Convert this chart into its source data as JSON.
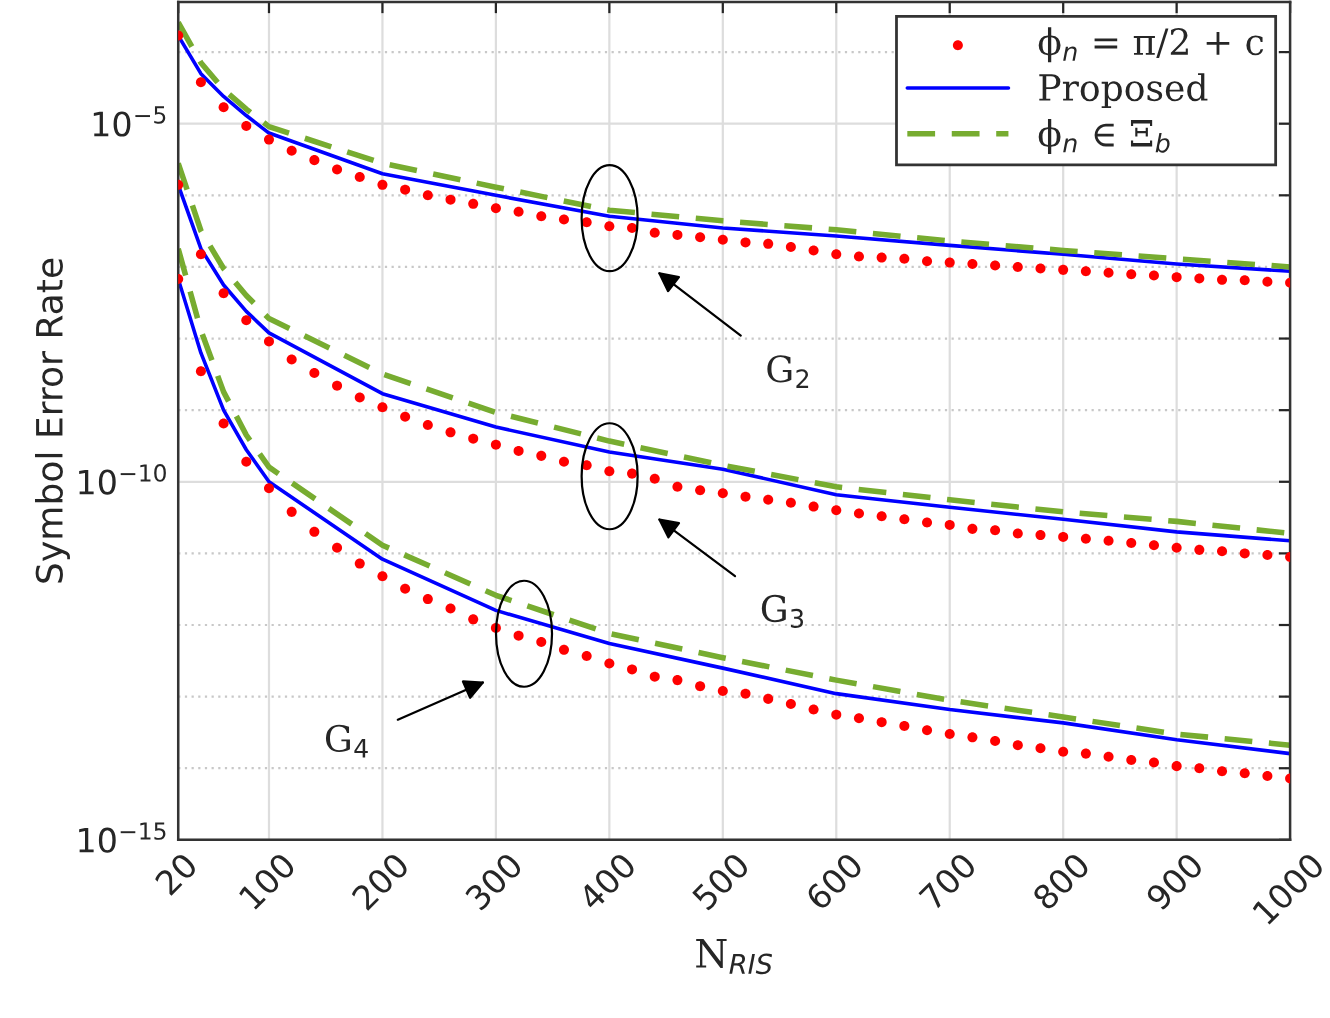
{
  "chart_data": {
    "type": "line",
    "xlabel": "N$_{RIS}$",
    "ylabel": "Symbol Error Rate",
    "xlim": [
      20,
      1000
    ],
    "ylim": [
      1e-15,
      0.0005
    ],
    "xticks": [
      20,
      100,
      200,
      300,
      400,
      500,
      600,
      700,
      800,
      900,
      1000
    ],
    "yticks": [
      {
        "value": 0.0001,
        "label": null
      },
      {
        "value": 1e-05,
        "label": "10$^{−5}$"
      },
      {
        "value": 1e-06,
        "label": null
      },
      {
        "value": 1e-07,
        "label": null
      },
      {
        "value": 1e-08,
        "label": null
      },
      {
        "value": 1e-09,
        "label": null
      },
      {
        "value": 1e-10,
        "label": "10$^{−10}$"
      },
      {
        "value": 1e-11,
        "label": null
      },
      {
        "value": 1e-12,
        "label": null
      },
      {
        "value": 1e-13,
        "label": null
      },
      {
        "value": 1e-14,
        "label": null
      },
      {
        "value": 1e-15,
        "label": "10$^{−15}$"
      }
    ],
    "log": "y",
    "grid": true,
    "legend": "top right",
    "annotations": [
      "G$_{2}$",
      "G$_{3}$",
      "G$_{4}$"
    ],
    "series": [
      {
        "name": "ϕ$_{n}$ = π/2 + c",
        "type": "scatter",
        "marker": "circle",
        "color": "#ff0000",
        "x": [
          20,
          40,
          60,
          80,
          100,
          120,
          140,
          160,
          180,
          200,
          220,
          240,
          260,
          280,
          300,
          320,
          340,
          360,
          380,
          400,
          420,
          440,
          460,
          480,
          500,
          520,
          540,
          560,
          580,
          600,
          620,
          640,
          660,
          680,
          700,
          720,
          740,
          760,
          780,
          800,
          820,
          840,
          860,
          880,
          900,
          920,
          940,
          960,
          980,
          1000
        ],
        "values": [
          0.00017,
          3.8e-05,
          1.7e-05,
          9.3e-06,
          6e-06,
          4.2e-06,
          3.1e-06,
          2.3e-06,
          1.8e-06,
          1.4e-06,
          1.2e-06,
          1e-06,
          8.7e-07,
          7.6e-07,
          6.6e-07,
          5.9e-07,
          5.1e-07,
          4.6e-07,
          4.2e-07,
          3.7e-07,
          3.5e-07,
          3e-07,
          2.8e-07,
          2.6e-07,
          2.4e-07,
          2.2e-07,
          2.1e-07,
          1.9e-07,
          1.7e-07,
          1.5e-07,
          1.4e-07,
          1.35e-07,
          1.3e-07,
          1.2e-07,
          1.15e-07,
          1.1e-07,
          1.05e-07,
          1e-07,
          9.5e-08,
          9.1e-08,
          8.7e-08,
          8.3e-08,
          7.9e-08,
          7.6e-08,
          7.2e-08,
          6.9e-08,
          6.6e-08,
          6.5e-08,
          6.2e-08,
          6e-08
        ]
      },
      {
        "name": "Proposed",
        "line_style": "solid",
        "color": "#0000ff",
        "x": [
          20,
          40,
          60,
          80,
          100,
          200,
          300,
          400,
          500,
          600,
          700,
          800,
          900,
          1000
        ],
        "values": [
          0.00017,
          5e-05,
          2.4e-05,
          1.3e-05,
          7.4e-06,
          2e-06,
          1e-06,
          5.1e-07,
          3.5e-07,
          2.7e-07,
          2e-07,
          1.5e-07,
          1.1e-07,
          8.7e-08
        ]
      },
      {
        "name": "ϕ$_{n}$ ∈ Ξ$_{b}$",
        "line_style": "dashed",
        "color": "#77ac30",
        "x": [
          20,
          40,
          60,
          80,
          100,
          200,
          300,
          400,
          500,
          600,
          700,
          800,
          900,
          1000
        ],
        "values": [
          0.00026,
          7.1e-05,
          3e-05,
          1.6e-05,
          9.1e-06,
          2.8e-06,
          1.3e-06,
          6.2e-07,
          4.4e-07,
          3.3e-07,
          2.3e-07,
          1.7e-07,
          1.3e-07,
          1e-07
        ]
      },
      {
        "type": "scatter",
        "marker": "circle",
        "color": "#ff0000",
        "x": [
          20,
          40,
          60,
          80,
          100,
          120,
          140,
          160,
          180,
          200,
          220,
          240,
          260,
          280,
          300,
          320,
          340,
          360,
          380,
          400,
          420,
          440,
          460,
          480,
          500,
          520,
          540,
          560,
          580,
          600,
          620,
          640,
          660,
          680,
          700,
          720,
          740,
          760,
          780,
          800,
          820,
          840,
          860,
          880,
          900,
          920,
          940,
          960,
          980,
          1000
        ],
        "values": [
          1.4e-06,
          1.5e-07,
          4.3e-08,
          1.8e-08,
          9.1e-09,
          5.1e-09,
          3.3e-09,
          2.2e-09,
          1.5e-09,
          1.1e-09,
          8.1e-10,
          6.2e-10,
          4.9e-10,
          4e-10,
          3.3e-10,
          2.7e-10,
          2.3e-10,
          1.9e-10,
          1.7e-10,
          1.4e-10,
          1.3e-10,
          1.1e-10,
          8.5e-11,
          7.6e-11,
          6.9e-11,
          6.2e-11,
          5.6e-11,
          5.1e-11,
          4.5e-11,
          4e-11,
          3.6e-11,
          3.3e-11,
          3e-11,
          2.7e-11,
          2.5e-11,
          2.2e-11,
          2.1e-11,
          1.9e-11,
          1.8e-11,
          1.7e-11,
          1.6e-11,
          1.5e-11,
          1.4e-11,
          1.3e-11,
          1.2e-11,
          1.12e-11,
          1.07e-11,
          1e-11,
          9.5e-12,
          8.9e-12
        ]
      },
      {
        "line_style": "solid",
        "color": "#0000ff",
        "x": [
          20,
          40,
          60,
          80,
          100,
          200,
          300,
          400,
          500,
          600,
          700,
          800,
          900,
          1000
        ],
        "values": [
          1.4e-06,
          1.8e-07,
          5.6e-08,
          2.4e-08,
          1.2e-08,
          1.7e-09,
          5.8e-10,
          2.6e-10,
          1.5e-10,
          6.6e-11,
          4.4e-11,
          3e-11,
          2e-11,
          1.5e-11
        ]
      },
      {
        "line_style": "dashed",
        "color": "#77ac30",
        "x": [
          20,
          40,
          60,
          80,
          100,
          200,
          300,
          400,
          500,
          600,
          700,
          800,
          900,
          1000
        ],
        "values": [
          2.8e-06,
          3.2e-07,
          9.5e-08,
          4e-08,
          1.9e-08,
          3.2e-09,
          9.3e-10,
          3.7e-10,
          1.7e-10,
          8.5e-11,
          5.6e-11,
          3.8e-11,
          2.8e-11,
          1.9e-11
        ]
      },
      {
        "type": "scatter",
        "marker": "circle",
        "color": "#ff0000",
        "x": [
          20,
          40,
          60,
          80,
          100,
          120,
          140,
          160,
          180,
          200,
          220,
          240,
          260,
          280,
          300,
          320,
          340,
          360,
          380,
          400,
          420,
          440,
          460,
          480,
          500,
          520,
          540,
          560,
          580,
          600,
          620,
          640,
          660,
          680,
          700,
          720,
          740,
          760,
          780,
          800,
          820,
          840,
          860,
          880,
          900,
          920,
          940,
          960,
          980,
          1000
        ],
        "values": [
          6.8e-08,
          3.5e-09,
          6.5e-10,
          1.9e-10,
          8.1e-11,
          3.8e-11,
          2e-11,
          1.2e-11,
          7.2e-12,
          4.8e-12,
          3.2e-12,
          2.3e-12,
          1.7e-12,
          1.2e-12,
          9.1e-13,
          7.1e-13,
          5.8e-13,
          4.5e-13,
          3.7e-13,
          2.9e-13,
          2.4e-13,
          1.9e-13,
          1.7e-13,
          1.4e-13,
          1.2e-13,
          1.1e-13,
          9.3e-14,
          7.9e-14,
          6.6e-14,
          5.6e-14,
          5e-14,
          4.4e-14,
          3.9e-14,
          3.4e-14,
          3e-14,
          2.7e-14,
          2.4e-14,
          2.1e-14,
          1.9e-14,
          1.7e-14,
          1.6e-14,
          1.45e-14,
          1.3e-14,
          1.2e-14,
          1.07e-14,
          1e-14,
          9.1e-15,
          8.5e-15,
          7.8e-15,
          7.2e-15
        ]
      },
      {
        "line_style": "solid",
        "color": "#0000ff",
        "x": [
          20,
          40,
          60,
          80,
          100,
          200,
          300,
          400,
          500,
          600,
          700,
          800,
          900,
          1000
        ],
        "values": [
          6.8e-08,
          6.3e-09,
          1e-09,
          2.8e-10,
          1e-10,
          8.3e-12,
          1.6e-12,
          5.5e-13,
          2.5e-13,
          1.1e-13,
          6.6e-14,
          4.3e-14,
          2.5e-14,
          1.6e-14
        ]
      },
      {
        "line_style": "dashed",
        "color": "#77ac30",
        "x": [
          20,
          40,
          60,
          80,
          100,
          200,
          300,
          400,
          500,
          600,
          700,
          800,
          900,
          1000
        ],
        "values": [
          1.8e-07,
          1.3e-08,
          1.8e-09,
          4.5e-10,
          1.6e-10,
          1.3e-11,
          2.6e-12,
          7.6e-13,
          3.5e-13,
          1.7e-13,
          8.9e-14,
          5.2e-14,
          3e-14,
          2.1e-14
        ]
      }
    ]
  }
}
